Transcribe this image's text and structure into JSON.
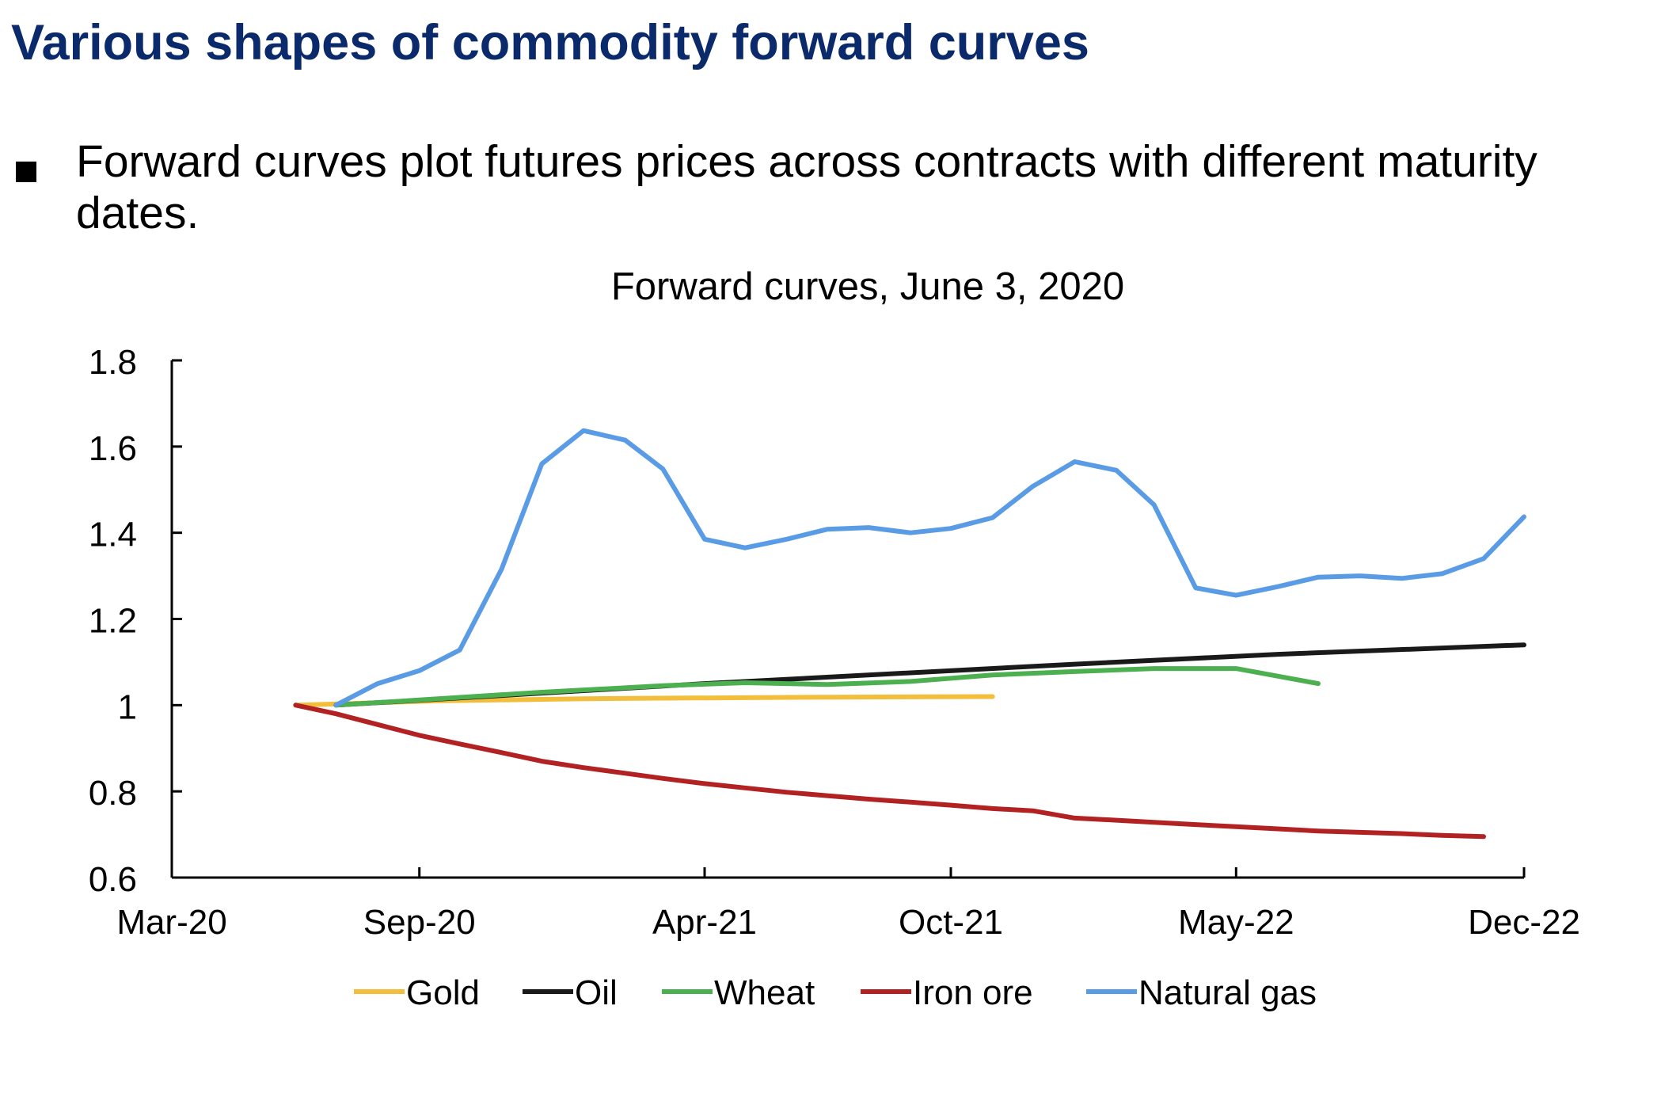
{
  "slide": {
    "title": "Various shapes of commodity forward curves",
    "bullet": "Forward curves plot futures prices across contracts with different maturity dates."
  },
  "chart_data": {
    "type": "line",
    "title": "Forward curves, June 3, 2020",
    "xlabel": "",
    "ylabel": "",
    "x_ticks": [
      "Mar-20",
      "Sep-20",
      "Apr-21",
      "Oct-21",
      "May-22",
      "Dec-22"
    ],
    "x_tick_dates": [
      "2020-03-01",
      "2020-09-01",
      "2021-04-01",
      "2021-10-01",
      "2022-05-01",
      "2022-12-01"
    ],
    "ylim": [
      0.6,
      1.8
    ],
    "y_ticks": [
      "0.6",
      "0.8",
      "1",
      "1.2",
      "1.4",
      "1.6",
      "1.8"
    ],
    "grid": false,
    "legend_position": "bottom",
    "series": [
      {
        "name": "Gold",
        "color": "#f2be3c",
        "points": [
          [
            "2020-06-01",
            1.0
          ],
          [
            "2020-09-15",
            1.01
          ],
          [
            "2021-01-01",
            1.015
          ],
          [
            "2021-06-01",
            1.018
          ],
          [
            "2021-11-01",
            1.02
          ]
        ]
      },
      {
        "name": "Oil",
        "color": "#1a1a1a",
        "points": [
          [
            "2020-07-01",
            1.0
          ],
          [
            "2021-04-01",
            1.05
          ],
          [
            "2022-01-01",
            1.095
          ],
          [
            "2022-06-01",
            1.118
          ],
          [
            "2022-12-01",
            1.14
          ]
        ]
      },
      {
        "name": "Wheat",
        "color": "#4caf50",
        "points": [
          [
            "2020-07-01",
            1.0
          ],
          [
            "2020-09-01",
            1.012
          ],
          [
            "2020-12-01",
            1.03
          ],
          [
            "2021-03-01",
            1.045
          ],
          [
            "2021-05-01",
            1.052
          ],
          [
            "2021-07-01",
            1.048
          ],
          [
            "2021-09-01",
            1.055
          ],
          [
            "2021-11-01",
            1.07
          ],
          [
            "2022-01-01",
            1.078
          ],
          [
            "2022-03-01",
            1.085
          ],
          [
            "2022-05-01",
            1.085
          ],
          [
            "2022-07-01",
            1.05
          ]
        ]
      },
      {
        "name": "Iron ore",
        "color": "#b22222",
        "points": [
          [
            "2020-06-01",
            1.0
          ],
          [
            "2020-07-01",
            0.98
          ],
          [
            "2020-08-01",
            0.955
          ],
          [
            "2020-09-01",
            0.93
          ],
          [
            "2020-10-01",
            0.91
          ],
          [
            "2020-11-01",
            0.89
          ],
          [
            "2020-12-01",
            0.87
          ],
          [
            "2021-01-01",
            0.855
          ],
          [
            "2021-02-01",
            0.842
          ],
          [
            "2021-03-01",
            0.83
          ],
          [
            "2021-04-01",
            0.818
          ],
          [
            "2021-05-01",
            0.808
          ],
          [
            "2021-06-01",
            0.798
          ],
          [
            "2021-07-01",
            0.79
          ],
          [
            "2021-08-01",
            0.782
          ],
          [
            "2021-09-01",
            0.775
          ],
          [
            "2021-10-01",
            0.768
          ],
          [
            "2021-11-01",
            0.76
          ],
          [
            "2021-12-01",
            0.755
          ],
          [
            "2022-01-01",
            0.738
          ],
          [
            "2022-02-01",
            0.733
          ],
          [
            "2022-03-01",
            0.728
          ],
          [
            "2022-04-01",
            0.723
          ],
          [
            "2022-05-01",
            0.718
          ],
          [
            "2022-06-01",
            0.713
          ],
          [
            "2022-07-01",
            0.708
          ],
          [
            "2022-08-01",
            0.705
          ],
          [
            "2022-09-01",
            0.702
          ],
          [
            "2022-10-01",
            0.698
          ],
          [
            "2022-11-01",
            0.695
          ]
        ]
      },
      {
        "name": "Natural gas",
        "color": "#5a9be6",
        "points": [
          [
            "2020-07-01",
            1.0
          ],
          [
            "2020-08-01",
            1.05
          ],
          [
            "2020-09-01",
            1.08
          ],
          [
            "2020-10-01",
            1.128
          ],
          [
            "2020-11-01",
            1.315
          ],
          [
            "2020-12-01",
            1.56
          ],
          [
            "2021-01-01",
            1.637
          ],
          [
            "2021-02-01",
            1.615
          ],
          [
            "2021-03-01",
            1.548
          ],
          [
            "2021-04-01",
            1.385
          ],
          [
            "2021-05-01",
            1.365
          ],
          [
            "2021-06-01",
            1.385
          ],
          [
            "2021-07-01",
            1.408
          ],
          [
            "2021-08-01",
            1.412
          ],
          [
            "2021-09-01",
            1.4
          ],
          [
            "2021-10-01",
            1.41
          ],
          [
            "2021-11-01",
            1.435
          ],
          [
            "2021-12-01",
            1.508
          ],
          [
            "2022-01-01",
            1.565
          ],
          [
            "2022-02-01",
            1.545
          ],
          [
            "2022-03-01",
            1.465
          ],
          [
            "2022-04-01",
            1.272
          ],
          [
            "2022-05-01",
            1.255
          ],
          [
            "2022-06-01",
            1.275
          ],
          [
            "2022-07-01",
            1.297
          ],
          [
            "2022-08-01",
            1.3
          ],
          [
            "2022-09-01",
            1.294
          ],
          [
            "2022-10-01",
            1.305
          ],
          [
            "2022-11-01",
            1.34
          ],
          [
            "2022-12-01",
            1.437
          ]
        ]
      }
    ]
  }
}
